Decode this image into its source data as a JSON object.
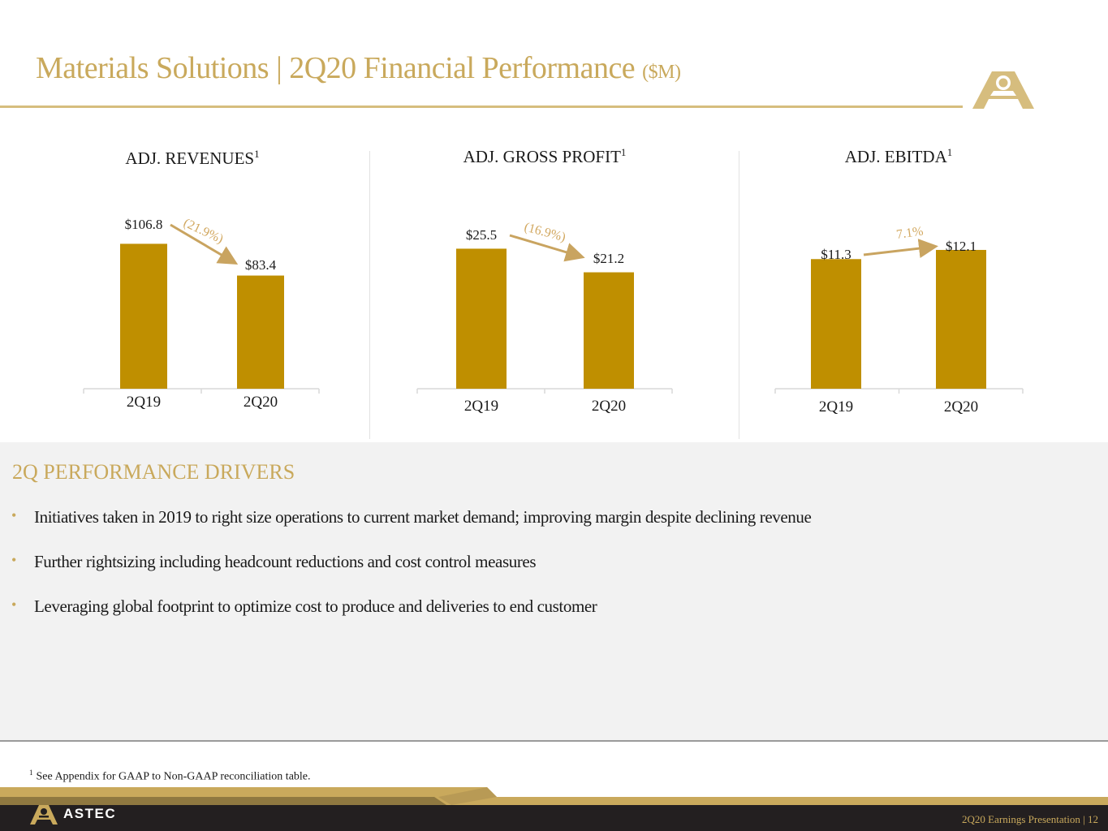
{
  "header": {
    "title": "Materials Solutions | 2Q20 Financial Performance",
    "unit": "($M)",
    "logo_icon": "astec-a-logo-icon"
  },
  "colors": {
    "bar": "#bf8f00",
    "accent": "#c9a95c",
    "arrow": "#c9a460"
  },
  "chart_data": [
    {
      "type": "bar",
      "title": "ADJ. REVENUES",
      "title_sup": "1",
      "categories": [
        "2Q19",
        "2Q20"
      ],
      "values": [
        106.8,
        83.4
      ],
      "value_labels": [
        "$106.8",
        "$83.4"
      ],
      "change_label": "(21.9%)",
      "ylim": [
        0,
        125
      ]
    },
    {
      "type": "bar",
      "title": "ADJ. GROSS PROFIT",
      "title_sup": "1",
      "categories": [
        "2Q19",
        "2Q20"
      ],
      "values": [
        25.5,
        21.2
      ],
      "value_labels": [
        "$25.5",
        "$21.2"
      ],
      "change_label": "(16.9%)",
      "ylim": [
        0,
        30
      ]
    },
    {
      "type": "bar",
      "title": "ADJ. EBITDA",
      "title_sup": "1",
      "categories": [
        "2Q19",
        "2Q20"
      ],
      "values": [
        11.3,
        12.1
      ],
      "value_labels": [
        "$11.3",
        "$12.1"
      ],
      "change_label": "7.1%",
      "ylim": [
        0,
        13.3
      ]
    }
  ],
  "drivers": {
    "title": "2Q PERFORMANCE DRIVERS",
    "items": [
      "Initiatives taken in 2019 to right size operations to current market demand; improving margin despite declining revenue",
      "Further rightsizing including headcount reductions and cost control measures",
      "Leveraging global footprint to optimize cost to produce and deliveries to end customer"
    ]
  },
  "footnote": {
    "marker": "1",
    "text": "See Appendix for GAAP to Non-GAAP reconciliation table."
  },
  "footer": {
    "brand": "ASTEC",
    "brand_icon": "astec-a-icon",
    "page_label": "2Q20 Earnings Presentation | 12"
  }
}
